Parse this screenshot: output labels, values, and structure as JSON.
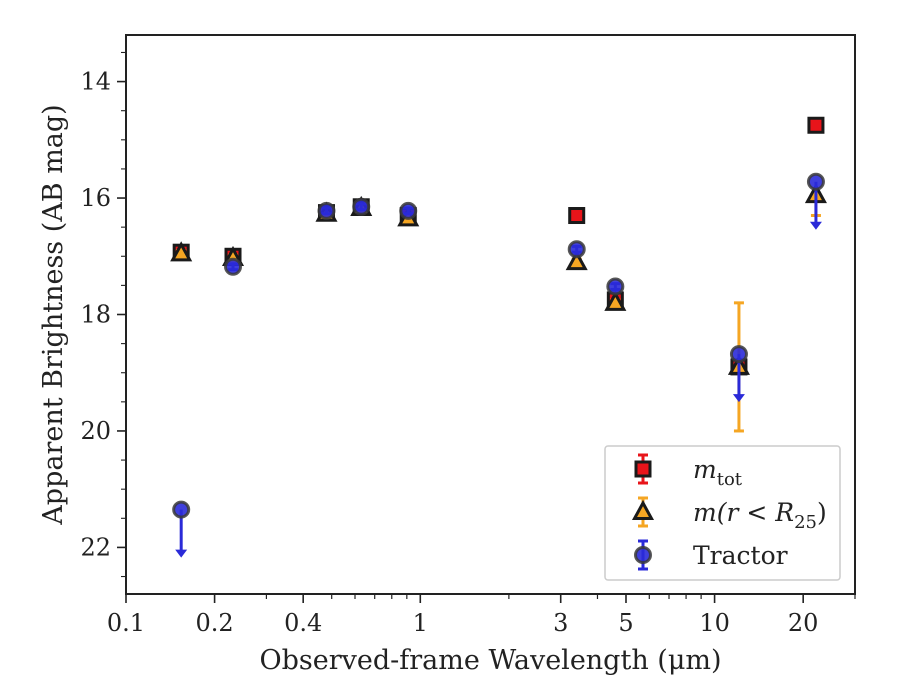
{
  "chart_data": {
    "type": "scatter",
    "xlabel": "Observed-frame Wavelength (μm)",
    "ylabel": "Apparent Brightness (AB mag)",
    "xscale": "log",
    "xlim": [
      0.1,
      30
    ],
    "ylim": [
      22.8,
      13.2
    ],
    "y_inverted": true,
    "x_tick_labels": [
      {
        "value": 0.1,
        "label": "0.1"
      },
      {
        "value": 0.2,
        "label": "0.2"
      },
      {
        "value": 0.4,
        "label": "0.4"
      },
      {
        "value": 1,
        "label": "1"
      },
      {
        "value": 3,
        "label": "3"
      },
      {
        "value": 5,
        "label": "5"
      },
      {
        "value": 10,
        "label": "10"
      },
      {
        "value": 20,
        "label": "20"
      }
    ],
    "x_minor_ticks": [
      0.3,
      0.5,
      0.6,
      0.7,
      0.8,
      0.9,
      2,
      4,
      6,
      7,
      8,
      9,
      30
    ],
    "y_ticks": [
      14,
      16,
      18,
      20,
      22
    ],
    "y_tick_labels": [
      "14",
      "16",
      "18",
      "20",
      "22"
    ],
    "grid": false,
    "legend_position": "lower-right",
    "legend": [
      {
        "label_main": "m",
        "label_sub": "tot",
        "marker": "square",
        "color": "#e8141a"
      },
      {
        "label_main": "m(r < R",
        "label_sub": "25",
        "label_end": ")",
        "marker": "triangle",
        "color": "#f5a623"
      },
      {
        "label_main": "Tractor",
        "marker": "circle",
        "color": "#2a2ad8"
      }
    ],
    "series": [
      {
        "name": "m_tot",
        "marker": "square",
        "color": "#e8141a",
        "points": [
          {
            "x": 0.154,
            "y": 16.93,
            "err": 0.1
          },
          {
            "x": 0.231,
            "y": 17.0,
            "err": 0.1
          },
          {
            "x": 0.48,
            "y": 16.25,
            "err": 0.05
          },
          {
            "x": 0.63,
            "y": 16.15,
            "err": 0.05
          },
          {
            "x": 0.91,
            "y": 16.3,
            "err": 0.05
          },
          {
            "x": 3.4,
            "y": 16.3,
            "err": 0.05
          },
          {
            "x": 4.6,
            "y": 17.75,
            "err": 0.05
          },
          {
            "x": 12.1,
            "y": 18.9,
            "err": 0.05
          },
          {
            "x": 22.1,
            "y": 14.75,
            "err": 0.05
          }
        ]
      },
      {
        "name": "m(r<R25)",
        "marker": "triangle",
        "color": "#f5a623",
        "points": [
          {
            "x": 0.154,
            "y": 16.95,
            "err": 0.05
          },
          {
            "x": 0.231,
            "y": 17.03,
            "err": 0.05
          },
          {
            "x": 0.48,
            "y": 16.27,
            "err": 0.05
          },
          {
            "x": 0.63,
            "y": 16.17,
            "err": 0.05
          },
          {
            "x": 0.91,
            "y": 16.35,
            "err": 0.05
          },
          {
            "x": 3.4,
            "y": 17.1,
            "err": 0.05
          },
          {
            "x": 4.6,
            "y": 17.8,
            "err": 0.05
          },
          {
            "x": 12.1,
            "y": 18.9,
            "err_up": 1.1,
            "err_down": 1.1
          },
          {
            "x": 22.1,
            "y": 15.95,
            "err_down": 0.35
          }
        ]
      },
      {
        "name": "Tractor",
        "marker": "circle",
        "color": "#2a2ad8",
        "points": [
          {
            "x": 0.154,
            "y": 21.35,
            "upper_limit": true
          },
          {
            "x": 0.231,
            "y": 17.18,
            "err": 0.05
          },
          {
            "x": 0.48,
            "y": 16.22,
            "err": 0.05
          },
          {
            "x": 0.63,
            "y": 16.15,
            "err": 0.05
          },
          {
            "x": 0.91,
            "y": 16.22,
            "err": 0.05
          },
          {
            "x": 3.4,
            "y": 16.88,
            "err": 0.05
          },
          {
            "x": 4.6,
            "y": 17.52,
            "err": 0.05
          },
          {
            "x": 12.1,
            "y": 18.68,
            "upper_limit": true
          },
          {
            "x": 22.1,
            "y": 15.72,
            "upper_limit": true
          }
        ]
      }
    ]
  }
}
